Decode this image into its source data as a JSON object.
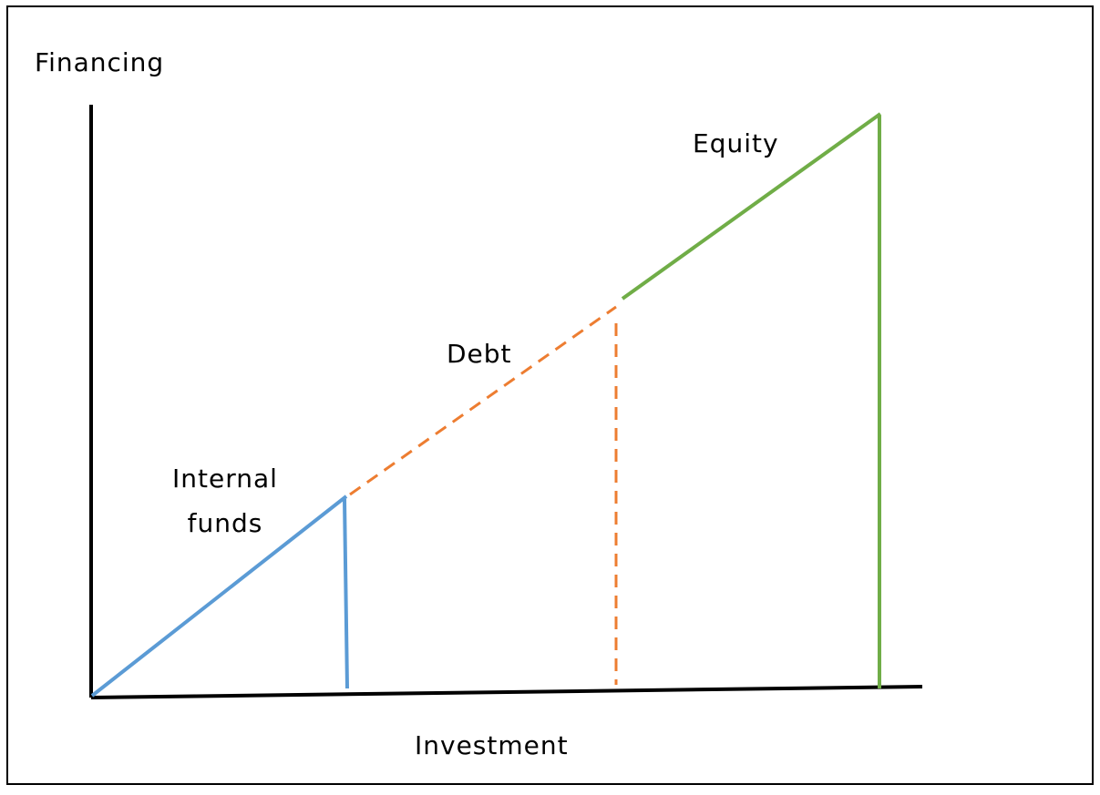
{
  "axes": {
    "y_label": "Financing",
    "x_label": "Investment"
  },
  "segments": [
    {
      "label_lines": [
        "Internal",
        "funds"
      ]
    },
    {
      "label_lines": [
        "Debt"
      ]
    },
    {
      "label_lines": [
        "Equity"
      ]
    }
  ]
}
